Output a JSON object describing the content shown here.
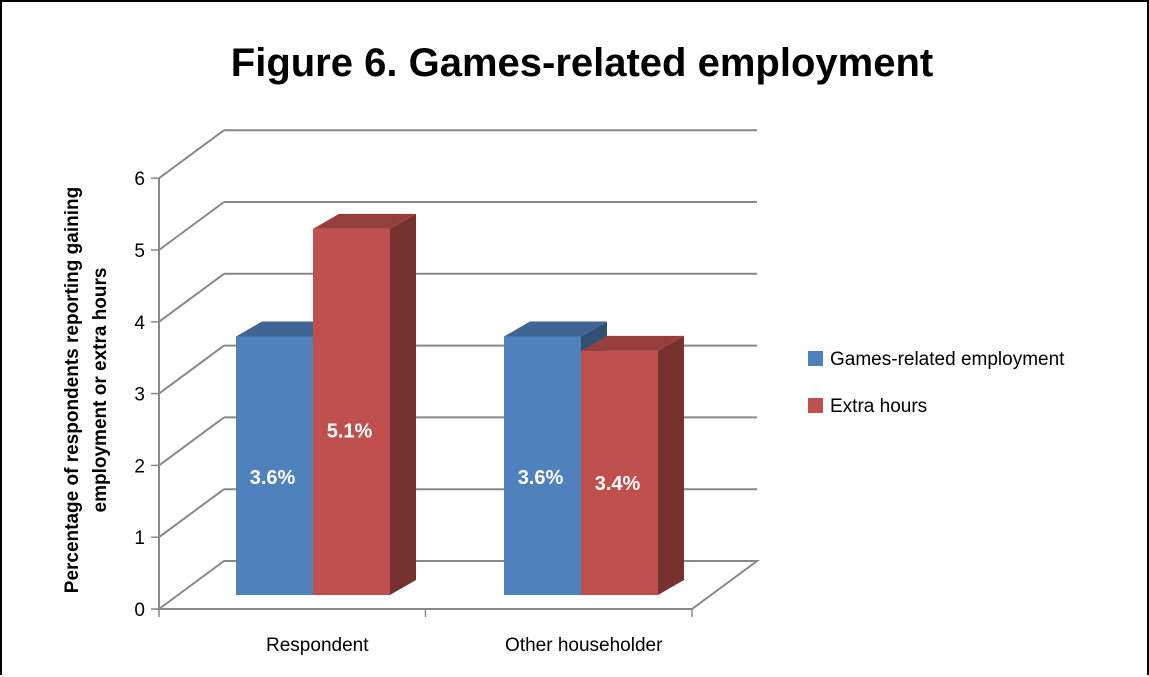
{
  "chart_data": {
    "type": "bar",
    "title": "Figure 6. Games-related employment",
    "ylabel_lines": [
      "Percentage of respondents reporting  gaining",
      "employment or extra hours"
    ],
    "xlabel": "",
    "categories": [
      "Respondent",
      "Other householder"
    ],
    "series": [
      {
        "name": "Games-related employment",
        "values": [
          3.6,
          3.6
        ],
        "labels": [
          "3.6%",
          "3.6%"
        ],
        "color": "#4F81BD"
      },
      {
        "name": "Extra hours",
        "values": [
          5.1,
          3.4
        ],
        "labels": [
          "5.1%",
          "3.4%"
        ],
        "color": "#C0504D"
      }
    ],
    "ylim": [
      0,
      6
    ],
    "yticks": [
      "0",
      "1",
      "2",
      "3",
      "4",
      "5",
      "6"
    ],
    "grid": true,
    "three_d": true,
    "legend_position": "right"
  }
}
